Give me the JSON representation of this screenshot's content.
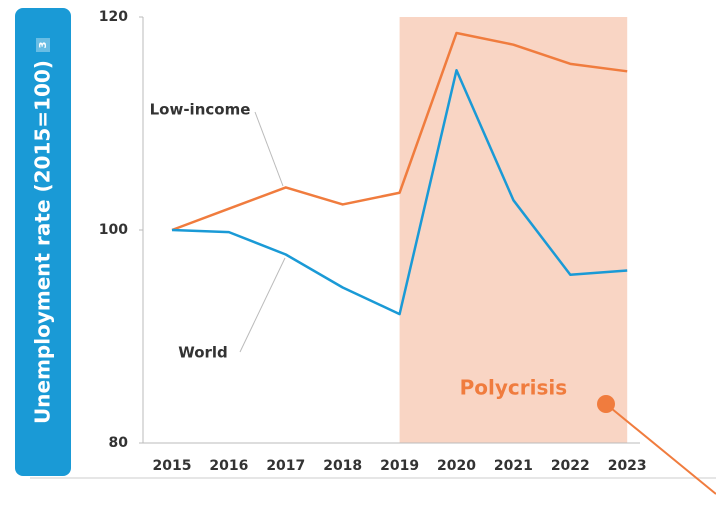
{
  "chart_data": {
    "type": "line",
    "y_label": "Unemployment rate (2015=100)",
    "y_label_note": "3",
    "categories": [
      "2015",
      "2016",
      "2017",
      "2018",
      "2019",
      "2020",
      "2021",
      "2022",
      "2023"
    ],
    "series": [
      {
        "name": "Low-income",
        "color": "#f07c3e",
        "values": [
          100,
          102,
          104.0,
          102.4,
          103.5,
          118.5,
          117.4,
          115.6,
          114.9
        ]
      },
      {
        "name": "World",
        "color": "#1a9ad6",
        "values": [
          100,
          99.8,
          97.7,
          94.6,
          92.1,
          115.0,
          102.8,
          95.8,
          96.2
        ]
      }
    ],
    "ylim": [
      80,
      120
    ],
    "yticks": [
      80,
      100,
      120
    ],
    "shaded_range": [
      "2019",
      "2023"
    ],
    "shaded_label": "Polycrisis",
    "shaded_color": "#f9d5c4"
  }
}
